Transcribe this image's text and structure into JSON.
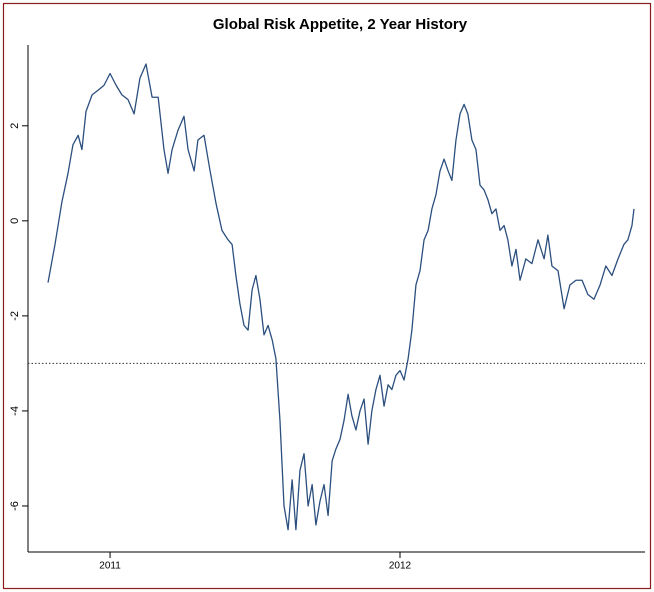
{
  "chart_data": {
    "type": "line",
    "title": "Global Risk Appetite, 2 Year History",
    "x": [
      2010.786,
      2010.81,
      2010.834,
      2010.855,
      2010.872,
      2010.89,
      2010.903,
      2010.917,
      2010.938,
      2010.959,
      2010.979,
      2011.0,
      2011.021,
      2011.041,
      2011.062,
      2011.083,
      2011.103,
      2011.124,
      2011.145,
      2011.166,
      2011.186,
      2011.2,
      2011.214,
      2011.234,
      2011.255,
      2011.269,
      2011.29,
      2011.303,
      2011.324,
      2011.345,
      2011.366,
      2011.386,
      2011.407,
      2011.421,
      2011.434,
      2011.448,
      2011.462,
      2011.476,
      2011.49,
      2011.503,
      2011.517,
      2011.531,
      2011.545,
      2011.559,
      2011.572,
      2011.586,
      2011.6,
      2011.614,
      2011.628,
      2011.641,
      2011.655,
      2011.669,
      2011.683,
      2011.697,
      2011.71,
      2011.724,
      2011.738,
      2011.752,
      2011.766,
      2011.779,
      2011.793,
      2011.807,
      2011.821,
      2011.834,
      2011.848,
      2011.862,
      2011.876,
      2011.89,
      2011.903,
      2011.917,
      2011.931,
      2011.945,
      2011.959,
      2011.972,
      2011.986,
      2012.0,
      2012.014,
      2012.028,
      2012.041,
      2012.055,
      2012.069,
      2012.083,
      2012.097,
      2012.11,
      2012.124,
      2012.138,
      2012.152,
      2012.166,
      2012.179,
      2012.193,
      2012.207,
      2012.221,
      2012.234,
      2012.248,
      2012.262,
      2012.276,
      2012.29,
      2012.303,
      2012.317,
      2012.331,
      2012.345,
      2012.359,
      2012.372,
      2012.386,
      2012.4,
      2012.414,
      2012.434,
      2012.455,
      2012.476,
      2012.497,
      2012.51,
      2012.524,
      2012.545,
      2012.566,
      2012.586,
      2012.607,
      2012.628,
      2012.648,
      2012.669,
      2012.69,
      2012.71,
      2012.731,
      2012.752,
      2012.772,
      2012.786,
      2012.8,
      2012.807
    ],
    "series": [
      {
        "color": "#2b4f7e",
        "values": [
          -1.3,
          -0.5,
          0.4,
          1.0,
          1.6,
          1.8,
          1.5,
          2.3,
          2.65,
          2.75,
          2.85,
          3.1,
          2.85,
          2.65,
          2.55,
          2.25,
          3.0,
          3.3,
          2.6,
          2.6,
          1.5,
          1.0,
          1.5,
          1.9,
          2.2,
          1.5,
          1.05,
          1.7,
          1.8,
          1.05,
          0.35,
          -0.2,
          -0.4,
          -0.5,
          -1.15,
          -1.75,
          -2.2,
          -2.3,
          -1.45,
          -1.15,
          -1.65,
          -2.4,
          -2.2,
          -2.5,
          -2.9,
          -4.2,
          -6.0,
          -6.5,
          -5.45,
          -6.5,
          -5.25,
          -4.9,
          -6.0,
          -5.55,
          -6.4,
          -5.9,
          -5.55,
          -6.2,
          -5.05,
          -4.8,
          -4.6,
          -4.2,
          -3.65,
          -4.1,
          -4.4,
          -4.0,
          -3.75,
          -4.7,
          -4.0,
          -3.55,
          -3.25,
          -3.9,
          -3.45,
          -3.55,
          -3.25,
          -3.15,
          -3.35,
          -2.9,
          -2.3,
          -1.35,
          -1.05,
          -0.4,
          -0.2,
          0.25,
          0.55,
          1.05,
          1.3,
          1.05,
          0.85,
          1.7,
          2.25,
          2.45,
          2.25,
          1.7,
          1.5,
          0.75,
          0.65,
          0.45,
          0.15,
          0.25,
          -0.2,
          -0.1,
          -0.4,
          -0.95,
          -0.6,
          -1.25,
          -0.8,
          -0.9,
          -0.4,
          -0.8,
          -0.3,
          -0.95,
          -1.05,
          -1.85,
          -1.35,
          -1.25,
          -1.25,
          -1.55,
          -1.65,
          -1.35,
          -0.95,
          -1.15,
          -0.8,
          -0.5,
          -0.4,
          -0.1,
          0.25
        ]
      }
    ],
    "reference_line": -3,
    "xlim": [
      2010.717,
      2012.845
    ],
    "xticks": [
      2011,
      2012
    ],
    "ylim": [
      -7,
      3.7
    ],
    "yticks": [
      -6,
      -4,
      -2,
      0,
      2
    ]
  }
}
